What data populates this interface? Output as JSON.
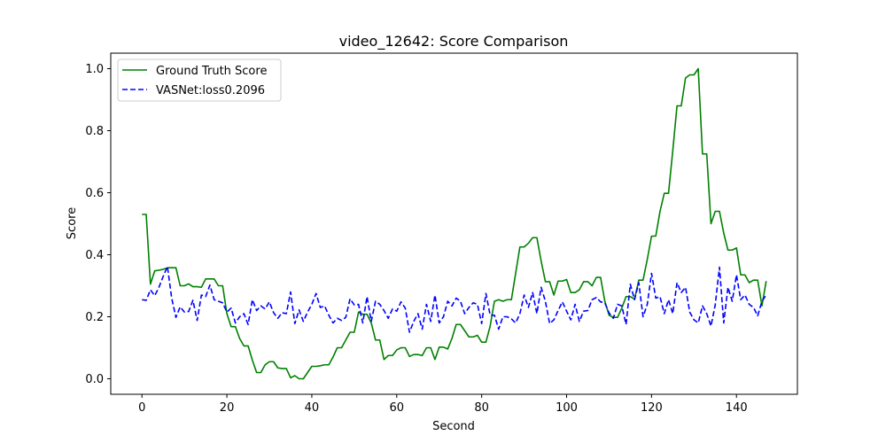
{
  "chart_data": {
    "type": "line",
    "title": "video_12642: Score Comparison",
    "xlabel": "Second",
    "ylabel": "Score",
    "xlim": [
      -7.35,
      154.35
    ],
    "ylim": [
      -0.05,
      1.05
    ],
    "xticks": [
      0,
      20,
      40,
      60,
      80,
      100,
      120,
      140
    ],
    "yticks": [
      0.0,
      0.2,
      0.4,
      0.6,
      0.8,
      1.0
    ],
    "grid": false,
    "legend_position": "top-left",
    "series": [
      {
        "name": "Ground Truth Score",
        "color": "#008000",
        "style": "solid",
        "values": [
          0.53,
          0.53,
          0.305,
          0.348,
          0.35,
          0.353,
          0.358,
          0.358,
          0.358,
          0.3,
          0.3,
          0.306,
          0.297,
          0.297,
          0.295,
          0.322,
          0.322,
          0.322,
          0.3,
          0.3,
          0.21,
          0.168,
          0.168,
          0.13,
          0.106,
          0.106,
          0.06,
          0.02,
          0.02,
          0.045,
          0.055,
          0.055,
          0.035,
          0.033,
          0.033,
          0.003,
          0.01,
          0.0,
          0.0,
          0.02,
          0.04,
          0.04,
          0.042,
          0.045,
          0.045,
          0.07,
          0.1,
          0.1,
          0.125,
          0.15,
          0.15,
          0.215,
          0.208,
          0.208,
          0.18,
          0.125,
          0.125,
          0.062,
          0.075,
          0.075,
          0.093,
          0.1,
          0.1,
          0.072,
          0.078,
          0.078,
          0.075,
          0.1,
          0.1,
          0.062,
          0.102,
          0.102,
          0.096,
          0.13,
          0.175,
          0.175,
          0.155,
          0.135,
          0.135,
          0.14,
          0.118,
          0.118,
          0.17,
          0.25,
          0.255,
          0.25,
          0.255,
          0.255,
          0.34,
          0.425,
          0.425,
          0.437,
          0.455,
          0.455,
          0.38,
          0.313,
          0.313,
          0.27,
          0.315,
          0.315,
          0.32,
          0.278,
          0.278,
          0.287,
          0.313,
          0.313,
          0.3,
          0.327,
          0.327,
          0.25,
          0.205,
          0.198,
          0.198,
          0.228,
          0.265,
          0.265,
          0.257,
          0.318,
          0.318,
          0.385,
          0.46,
          0.46,
          0.54,
          0.598,
          0.598,
          0.735,
          0.88,
          0.88,
          0.97,
          0.98,
          0.98,
          1.0,
          0.725,
          0.725,
          0.5,
          0.54,
          0.54,
          0.47,
          0.415,
          0.415,
          0.422,
          0.335,
          0.335,
          0.31,
          0.318,
          0.318,
          0.235,
          0.315
        ]
      },
      {
        "name": "VASNet:loss0.2096",
        "color": "#0000ff",
        "style": "dashed",
        "values": [
          0.255,
          0.253,
          0.287,
          0.268,
          0.295,
          0.33,
          0.362,
          0.26,
          0.198,
          0.232,
          0.215,
          0.217,
          0.253,
          0.188,
          0.27,
          0.265,
          0.302,
          0.255,
          0.25,
          0.245,
          0.215,
          0.228,
          0.18,
          0.2,
          0.21,
          0.175,
          0.255,
          0.22,
          0.235,
          0.225,
          0.248,
          0.213,
          0.195,
          0.213,
          0.21,
          0.28,
          0.178,
          0.222,
          0.185,
          0.215,
          0.24,
          0.275,
          0.23,
          0.235,
          0.205,
          0.18,
          0.195,
          0.188,
          0.198,
          0.258,
          0.238,
          0.24,
          0.18,
          0.265,
          0.185,
          0.25,
          0.24,
          0.22,
          0.195,
          0.225,
          0.218,
          0.248,
          0.228,
          0.15,
          0.185,
          0.21,
          0.16,
          0.24,
          0.185,
          0.27,
          0.18,
          0.2,
          0.25,
          0.235,
          0.26,
          0.25,
          0.21,
          0.23,
          0.245,
          0.24,
          0.178,
          0.275,
          0.205,
          0.205,
          0.16,
          0.2,
          0.2,
          0.193,
          0.18,
          0.21,
          0.27,
          0.23,
          0.278,
          0.21,
          0.295,
          0.25,
          0.178,
          0.19,
          0.22,
          0.248,
          0.218,
          0.19,
          0.24,
          0.185,
          0.218,
          0.22,
          0.255,
          0.262,
          0.248,
          0.245,
          0.212,
          0.195,
          0.24,
          0.235,
          0.175,
          0.305,
          0.255,
          0.31,
          0.2,
          0.24,
          0.34,
          0.26,
          0.265,
          0.21,
          0.255,
          0.21,
          0.31,
          0.278,
          0.295,
          0.215,
          0.19,
          0.18,
          0.235,
          0.21,
          0.17,
          0.238,
          0.36,
          0.18,
          0.295,
          0.25,
          0.335,
          0.255,
          0.27,
          0.24,
          0.23,
          0.203,
          0.25,
          0.27
        ]
      }
    ]
  }
}
